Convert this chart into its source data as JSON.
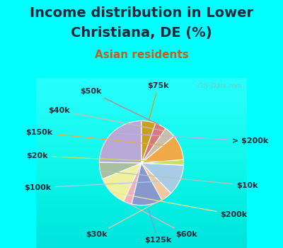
{
  "title_line1": "Income distribution in Lower",
  "title_line2": "Christiana, DE (%)",
  "subtitle": "Asian residents",
  "bg_cyan": "#00FFFF",
  "bg_chart": "#d8ede0",
  "labels": [
    "> $200k",
    "$10k",
    "$200k",
    "$60k",
    "$125k",
    "$30k",
    "$100k",
    "$20k",
    "$150k",
    "$40k",
    "$50k",
    "$75k"
  ],
  "sizes": [
    23,
    6,
    11,
    3,
    11,
    4,
    11,
    2,
    9,
    4,
    4,
    5
  ],
  "colors": [
    "#b8a8d8",
    "#a8c0a0",
    "#f0f0a0",
    "#f0b0c0",
    "#8898cc",
    "#f0c8a0",
    "#a8cce8",
    "#c8e060",
    "#f0a848",
    "#c8c0a8",
    "#d87878",
    "#c8a020"
  ],
  "label_fontsize": 8,
  "title_fontsize": 14,
  "subtitle_fontsize": 11,
  "watermark": "City-Data.com"
}
